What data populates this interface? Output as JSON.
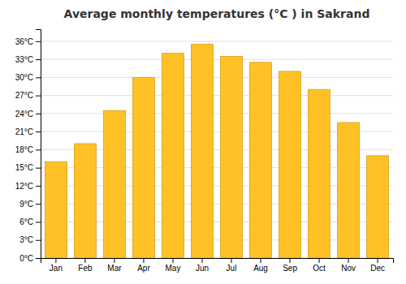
{
  "chart_data": {
    "type": "bar",
    "title": "Average monthly temperatures (°C ) in Sakrand",
    "categories": [
      "Jan",
      "Feb",
      "Mar",
      "Apr",
      "May",
      "Jun",
      "Jul",
      "Aug",
      "Sep",
      "Oct",
      "Nov",
      "Dec"
    ],
    "values": [
      16,
      19,
      24.5,
      30,
      34,
      35.5,
      33.5,
      32.5,
      31,
      28,
      22.5,
      17
    ],
    "color": "#FFC125",
    "ylim": [
      0,
      38
    ],
    "yticks": [
      {
        "value": 0,
        "label": "0°C"
      },
      {
        "value": 3,
        "label": "3°C"
      },
      {
        "value": 6,
        "label": "6°C"
      },
      {
        "value": 9,
        "label": "9°C"
      },
      {
        "value": 12,
        "label": "12°C"
      },
      {
        "value": 15,
        "label": "15°C"
      },
      {
        "value": 18,
        "label": "18°C"
      },
      {
        "value": 21,
        "label": "21°C"
      },
      {
        "value": 24,
        "label": "24°C"
      },
      {
        "value": 27,
        "label": "27°C"
      },
      {
        "value": 30,
        "label": "30°C"
      },
      {
        "value": 33,
        "label": "33°C"
      },
      {
        "value": 36,
        "label": "36°C"
      }
    ],
    "grid": true
  }
}
